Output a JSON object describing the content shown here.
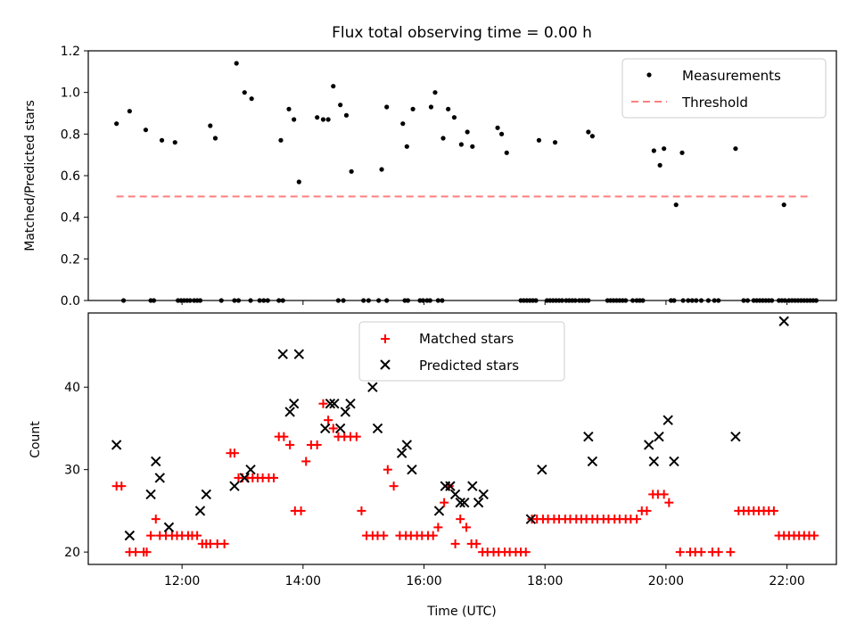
{
  "chart_data": [
    {
      "type": "scatter",
      "title": "Flux total observing time = 0.00 h",
      "xlabel": "",
      "ylabel": "Matched/Predicted stars",
      "xlim": [
        "10:27",
        "22:49"
      ],
      "ylim": [
        0.0,
        1.2
      ],
      "yticks": [
        0.0,
        0.2,
        0.4,
        0.6,
        0.8,
        1.0,
        1.2
      ],
      "ytick_labels": [
        "0.0",
        "0.2",
        "0.4",
        "0.6",
        "0.8",
        "1.0",
        "1.2"
      ],
      "xticks": [
        "12:00",
        "14:00",
        "16:00",
        "18:00",
        "20:00",
        "22:00"
      ],
      "legend": {
        "placement": "top-right",
        "entries": [
          "Measurements",
          "Threshold"
        ]
      },
      "grid": false,
      "series": [
        {
          "name": "Measurements",
          "color": "#000000",
          "marker": "dot",
          "x": [
            "10:55",
            "11:08",
            "11:24",
            "11:40",
            "11:53",
            "12:28",
            "12:33",
            "12:54",
            "13:02",
            "13:09",
            "13:38",
            "13:46",
            "13:51",
            "13:56",
            "14:14",
            "14:20",
            "14:25",
            "14:30",
            "14:37",
            "14:43",
            "14:48",
            "15:18",
            "15:23",
            "15:39",
            "15:43",
            "15:49",
            "16:07",
            "16:11",
            "16:19",
            "16:24",
            "16:30",
            "16:37",
            "16:43",
            "16:48",
            "17:13",
            "17:17",
            "17:22",
            "17:54",
            "18:10",
            "18:43",
            "18:47",
            "19:48",
            "19:54",
            "19:58",
            "20:10",
            "20:16",
            "21:09",
            "21:57"
          ],
          "y": [
            0.85,
            0.91,
            0.82,
            0.77,
            0.76,
            0.84,
            0.78,
            1.14,
            1.0,
            0.97,
            0.77,
            0.92,
            0.87,
            0.57,
            0.88,
            0.87,
            0.87,
            1.03,
            0.94,
            0.89,
            0.62,
            0.63,
            0.93,
            0.85,
            0.74,
            0.92,
            0.93,
            1.0,
            0.78,
            0.92,
            0.88,
            0.75,
            0.81,
            0.74,
            0.83,
            0.8,
            0.71,
            0.77,
            0.76,
            0.81,
            0.79,
            0.72,
            0.65,
            0.73,
            0.46,
            0.71,
            0.73,
            0.46
          ],
          "x_zero": [
            "11:02",
            "11:29",
            "11:32",
            "11:56",
            "11:59",
            "12:02",
            "12:05",
            "12:08",
            "12:12",
            "12:15",
            "12:18",
            "12:39",
            "12:52",
            "12:56",
            "13:08",
            "13:17",
            "13:21",
            "13:25",
            "13:36",
            "13:40",
            "14:35",
            "14:40",
            "15:00",
            "15:05",
            "15:15",
            "15:23",
            "15:41",
            "15:44",
            "15:56",
            "15:59",
            "16:03",
            "16:06",
            "16:14",
            "16:18",
            "17:36",
            "17:39",
            "17:42",
            "17:45",
            "17:48",
            "17:51",
            "18:02",
            "18:05",
            "18:08",
            "18:11",
            "18:14",
            "18:17",
            "18:21",
            "18:24",
            "18:27",
            "18:30",
            "18:34",
            "18:37",
            "18:40",
            "18:43",
            "19:02",
            "19:05",
            "19:08",
            "19:11",
            "19:14",
            "19:17",
            "19:20",
            "19:27",
            "19:31",
            "19:34",
            "19:37",
            "20:05",
            "20:08",
            "20:17",
            "20:22",
            "20:26",
            "20:30",
            "20:35",
            "20:42",
            "20:48",
            "20:52",
            "21:17",
            "21:21",
            "21:27",
            "21:30",
            "21:33",
            "21:36",
            "21:39",
            "21:42",
            "21:45",
            "21:52",
            "21:55",
            "21:58",
            "22:02",
            "22:05",
            "22:08",
            "22:11",
            "22:14",
            "22:17",
            "22:20",
            "22:23",
            "22:26",
            "22:29"
          ]
        },
        {
          "name": "Threshold",
          "color": "#ff7f7f",
          "style": "dashed",
          "x": [
            "10:55",
            "22:25"
          ],
          "y": [
            0.5,
            0.5
          ]
        }
      ]
    },
    {
      "type": "scatter",
      "title": "",
      "xlabel": "Time (UTC)",
      "ylabel": "Count",
      "xlim": [
        "10:27",
        "22:49"
      ],
      "ylim": [
        18.5,
        49
      ],
      "yticks": [
        20,
        30,
        40
      ],
      "ytick_labels": [
        "20",
        "30",
        "40"
      ],
      "xticks": [
        "12:00",
        "14:00",
        "16:00",
        "18:00",
        "20:00",
        "22:00"
      ],
      "xtick_labels": [
        "12:00",
        "14:00",
        "16:00",
        "18:00",
        "20:00",
        "22:00"
      ],
      "legend": {
        "placement": "top-center",
        "entries": [
          "Matched stars",
          "Predicted stars"
        ]
      },
      "grid": false,
      "series": [
        {
          "name": "Matched stars",
          "color": "#ff0000",
          "marker": "plus",
          "x": [
            "10:55",
            "11:00",
            "11:08",
            "11:14",
            "11:22",
            "11:25",
            "11:29",
            "11:34",
            "11:38",
            "11:44",
            "11:50",
            "11:55",
            "12:00",
            "12:06",
            "12:10",
            "12:15",
            "12:20",
            "12:24",
            "12:28",
            "12:35",
            "12:42",
            "12:48",
            "12:52",
            "12:56",
            "13:00",
            "13:05",
            "13:10",
            "13:15",
            "13:20",
            "13:26",
            "13:31",
            "13:36",
            "13:41",
            "13:47",
            "13:52",
            "13:58",
            "14:03",
            "14:08",
            "14:14",
            "14:20",
            "14:25",
            "14:30",
            "14:35",
            "14:41",
            "14:47",
            "14:53",
            "14:58",
            "15:03",
            "15:09",
            "15:14",
            "15:20",
            "15:24",
            "15:30",
            "15:36",
            "15:42",
            "15:47",
            "15:53",
            "15:58",
            "16:04",
            "16:09",
            "16:14",
            "16:20",
            "16:25",
            "16:31",
            "16:36",
            "16:42",
            "16:47",
            "16:52",
            "16:58",
            "17:03",
            "17:09",
            "17:14",
            "17:20",
            "17:25",
            "17:31",
            "17:36",
            "17:41",
            "17:47",
            "17:52",
            "17:58",
            "18:03",
            "18:09",
            "18:14",
            "18:20",
            "18:25",
            "18:31",
            "18:36",
            "18:41",
            "18:47",
            "18:52",
            "18:58",
            "19:03",
            "19:09",
            "19:14",
            "19:20",
            "19:25",
            "19:31",
            "19:36",
            "19:41",
            "19:47",
            "19:52",
            "19:58",
            "20:03",
            "20:14",
            "20:24",
            "20:29",
            "20:35",
            "20:46",
            "20:52",
            "21:04",
            "21:12",
            "21:17",
            "21:22",
            "21:27",
            "21:32",
            "21:37",
            "21:42",
            "21:47",
            "21:52",
            "21:57",
            "22:02",
            "22:07",
            "22:12",
            "22:17",
            "22:22",
            "22:27"
          ],
          "y": [
            28,
            28,
            20,
            20,
            20,
            20,
            22,
            24,
            22,
            22,
            22,
            22,
            22,
            22,
            22,
            22,
            21,
            21,
            21,
            21,
            21,
            32,
            32,
            29,
            29,
            29,
            29,
            29,
            29,
            29,
            29,
            34,
            34,
            33,
            25,
            25,
            31,
            33,
            33,
            38,
            36,
            35,
            34,
            34,
            34,
            34,
            25,
            22,
            22,
            22,
            22,
            30,
            28,
            22,
            22,
            22,
            22,
            22,
            22,
            22,
            23,
            26,
            28,
            21,
            24,
            23,
            21,
            21,
            20,
            20,
            20,
            20,
            20,
            20,
            20,
            20,
            20,
            24,
            24,
            24,
            24,
            24,
            24,
            24,
            24,
            24,
            24,
            24,
            24,
            24,
            24,
            24,
            24,
            24,
            24,
            24,
            24,
            25,
            25,
            27,
            27,
            27,
            26,
            20,
            20,
            20,
            20,
            20,
            20,
            20,
            25,
            25,
            25,
            25,
            25,
            25,
            25,
            25,
            22,
            22,
            22,
            22,
            22,
            22,
            22,
            22
          ],
          "x_draw": [
            "10:58",
            "11:03",
            "11:07",
            "11:13",
            "11:20",
            "11:24",
            "11:28",
            "11:32",
            "11:38",
            "11:44",
            "11:50",
            "11:55",
            "12:00",
            "12:06",
            "12:10",
            "12:15",
            "12:20",
            "12:24",
            "12:28",
            "12:35",
            "12:42",
            "12:48",
            "12:52",
            "12:56",
            "13:00",
            "13:05",
            "13:10",
            "13:15",
            "13:20",
            "13:26",
            "13:31",
            "13:36",
            "13:41",
            "13:47",
            "13:52",
            "13:58",
            "14:03",
            "14:08",
            "14:14",
            "14:20",
            "14:25",
            "14:30",
            "14:35",
            "14:41",
            "14:47",
            "14:53",
            "14:58",
            "15:03",
            "15:09",
            "15:14",
            "15:20",
            "15:24",
            "15:30",
            "15:36",
            "15:42",
            "15:47",
            "15:53",
            "15:58",
            "16:04",
            "16:09",
            "16:14",
            "16:20",
            "16:25",
            "16:31",
            "16:36",
            "16:42",
            "16:47",
            "16:52",
            "16:58",
            "17:03",
            "17:09",
            "17:14",
            "17:20",
            "17:25",
            "17:31",
            "17:36",
            "17:41",
            "17:47",
            "17:52",
            "17:58",
            "18:03",
            "18:09",
            "18:14",
            "18:20",
            "18:25",
            "18:31",
            "18:36",
            "18:41",
            "18:47",
            "18:52",
            "18:58",
            "19:03",
            "19:09",
            "19:14",
            "19:20",
            "19:25",
            "19:31",
            "19:36",
            "19:41",
            "19:47",
            "19:52",
            "19:58",
            "20:03",
            "20:14",
            "20:24",
            "20:29",
            "20:35",
            "20:46",
            "20:52",
            "21:04",
            "21:12",
            "21:17",
            "21:22",
            "21:27",
            "21:32",
            "21:37",
            "21:42",
            "21:47",
            "21:52",
            "21:57",
            "22:02",
            "22:07",
            "22:12",
            "22:17",
            "22:22",
            "22:27"
          ]
        },
        {
          "name": "Predicted stars",
          "color": "#000000",
          "marker": "x",
          "x": [
            "10:55",
            "11:08",
            "11:29",
            "11:34",
            "11:38",
            "11:47",
            "12:18",
            "12:24",
            "12:52",
            "13:02",
            "13:08",
            "13:40",
            "13:47",
            "13:51",
            "13:56",
            "14:22",
            "14:27",
            "14:31",
            "14:37",
            "14:42",
            "14:47",
            "15:09",
            "15:14",
            "15:38",
            "15:43",
            "15:48",
            "16:15",
            "16:21",
            "16:26",
            "16:31",
            "16:36",
            "16:40",
            "16:48",
            "16:54",
            "16:59",
            "17:46",
            "17:57",
            "18:43",
            "18:47",
            "19:43",
            "19:48",
            "19:53",
            "20:02",
            "20:08",
            "21:09",
            "21:57"
          ],
          "y": [
            33,
            22,
            27,
            31,
            29,
            23,
            25,
            27,
            28,
            29,
            30,
            44,
            37,
            38,
            44,
            35,
            38,
            38,
            35,
            37,
            38,
            40,
            35,
            32,
            33,
            30,
            25,
            28,
            28,
            27,
            26,
            26,
            28,
            26,
            27,
            24,
            30,
            34,
            31,
            33,
            31,
            34,
            36,
            31,
            34,
            48
          ]
        }
      ]
    }
  ]
}
